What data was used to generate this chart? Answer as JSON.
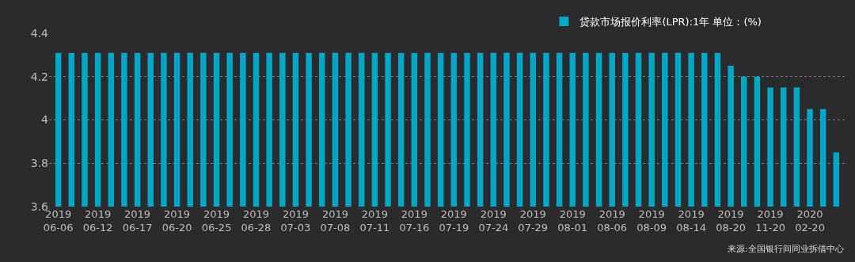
{
  "chart_data": {
    "type": "bar",
    "categories": [
      "2019\n06-06",
      null,
      null,
      "2019\n06-12",
      null,
      null,
      "2019\n06-17",
      null,
      null,
      "2019\n06-20",
      null,
      null,
      "2019\n06-25",
      null,
      null,
      "2019\n06-28",
      null,
      null,
      "2019\n07-03",
      null,
      null,
      "2019\n07-08",
      null,
      null,
      "2019\n07-11",
      null,
      null,
      "2019\n07-16",
      null,
      null,
      "2019\n07-19",
      null,
      null,
      "2019\n07-24",
      null,
      null,
      "2019\n07-29",
      null,
      null,
      "2019\n08-01",
      null,
      null,
      "2019\n08-06",
      null,
      null,
      "2019\n08-09",
      null,
      null,
      "2019\n08-14",
      null,
      null,
      "2019\n08-20",
      null,
      null,
      "2019\n11-20",
      null,
      null,
      "2020\n02-20",
      null,
      null
    ],
    "series": [
      {
        "name": "贷款市场报价利率(LPR):1年 单位：(%)",
        "color": "#00a8c6",
        "values": [
          4.31,
          4.31,
          4.31,
          4.31,
          4.31,
          4.31,
          4.31,
          4.31,
          4.31,
          4.31,
          4.31,
          4.31,
          4.31,
          4.31,
          4.31,
          4.31,
          4.31,
          4.31,
          4.31,
          4.31,
          4.31,
          4.31,
          4.31,
          4.31,
          4.31,
          4.31,
          4.31,
          4.31,
          4.31,
          4.31,
          4.31,
          4.31,
          4.31,
          4.31,
          4.31,
          4.31,
          4.31,
          4.31,
          4.31,
          4.31,
          4.31,
          4.31,
          4.31,
          4.31,
          4.31,
          4.31,
          4.31,
          4.31,
          4.31,
          4.31,
          4.31,
          4.25,
          4.2,
          4.2,
          4.15,
          4.15,
          4.15,
          4.05,
          4.05,
          3.85
        ]
      }
    ],
    "ylim": [
      3.6,
      4.4
    ],
    "yticks": [
      3.6,
      3.8,
      4,
      4.2,
      4.4
    ],
    "grid": "y",
    "legend": "top right",
    "annotations": [
      "来源:全国银行间同业拆借中心"
    ]
  }
}
